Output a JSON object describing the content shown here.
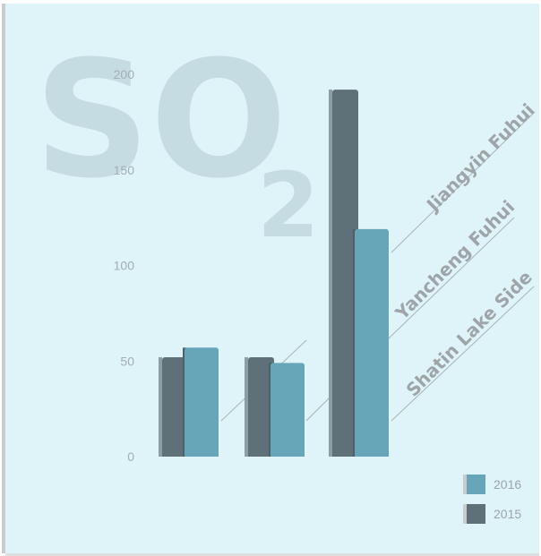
{
  "chart_data": {
    "type": "bar",
    "title": "SO",
    "title_subscript": "2",
    "categories": [
      "Shatin Lake Side",
      "Yancheng Fuhui",
      "Jiangyin Fuhui"
    ],
    "series": [
      {
        "name": "2015",
        "color": "#5e7178",
        "values": [
          52,
          52,
          192
        ]
      },
      {
        "name": "2016",
        "color": "#67a5b8",
        "values": [
          57,
          49,
          119
        ]
      }
    ],
    "y_ticks": [
      "0",
      "50",
      "100",
      "150",
      "200"
    ],
    "ylim": [
      0,
      200
    ],
    "grid": false,
    "legend_position": "bottom-right",
    "legend": [
      {
        "label": "2016",
        "color": "#67a5b8"
      },
      {
        "label": "2015",
        "color": "#5e7178"
      }
    ]
  },
  "colors": {
    "background": "#dff4f9",
    "watermark": "#c5dce3",
    "leader_line": "#a7b3b8"
  }
}
